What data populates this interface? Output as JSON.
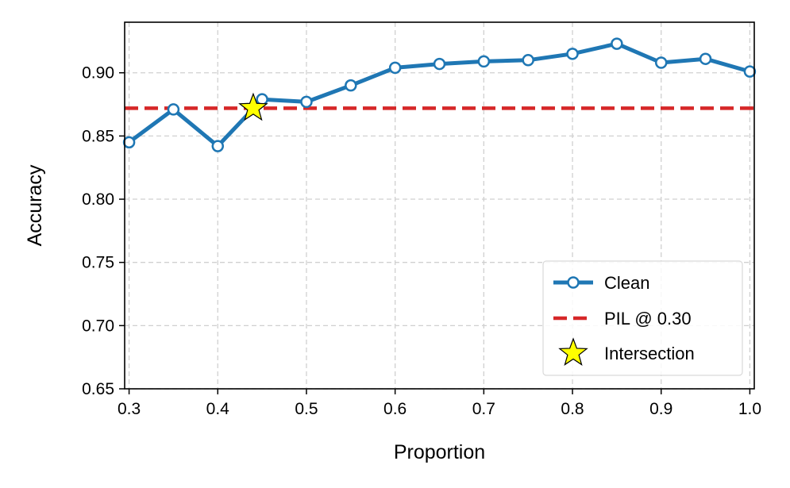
{
  "chart_data": {
    "type": "line",
    "title": "",
    "xlabel": "Proportion",
    "ylabel": "Accuracy",
    "xlim": [
      0.295,
      1.005
    ],
    "ylim": [
      0.65,
      0.94
    ],
    "xticks": [
      0.3,
      0.4,
      0.5,
      0.6,
      0.7,
      0.8,
      0.9,
      1.0
    ],
    "xtick_labels": [
      "0.3",
      "0.4",
      "0.5",
      "0.6",
      "0.7",
      "0.8",
      "0.9",
      "1.0"
    ],
    "yticks": [
      0.65,
      0.7,
      0.75,
      0.8,
      0.85,
      0.9
    ],
    "ytick_labels": [
      "0.65",
      "0.70",
      "0.75",
      "0.80",
      "0.85",
      "0.90"
    ],
    "grid": true,
    "legend_position": "lower-right",
    "series": [
      {
        "name": "Clean",
        "color": "#1f77b4",
        "style": "solid-line-with-hollow-circle-markers",
        "x": [
          0.3,
          0.35,
          0.4,
          0.45,
          0.5,
          0.55,
          0.6,
          0.65,
          0.7,
          0.75,
          0.8,
          0.85,
          0.9,
          0.95,
          1.0
        ],
        "y": [
          0.845,
          0.871,
          0.842,
          0.879,
          0.877,
          0.89,
          0.904,
          0.907,
          0.909,
          0.91,
          0.915,
          0.923,
          0.908,
          0.911,
          0.901
        ]
      },
      {
        "name": "PIL @ 0.30",
        "color": "#d62728",
        "style": "dashed-horizontal-line",
        "y_constant": 0.872
      },
      {
        "name": "Intersection",
        "color": "#ffff00",
        "style": "star-marker",
        "x": [
          0.44
        ],
        "y": [
          0.872
        ]
      }
    ]
  }
}
